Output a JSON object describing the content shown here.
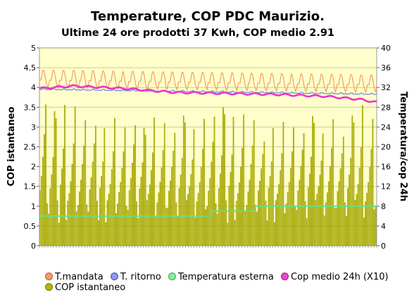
{
  "chart_data": {
    "type": "bar",
    "title": "Temperature, COP PDC Maurizio.",
    "subtitle": "Ultime 24 ore prodotti 37 Kwh, COP medio 2.91",
    "ylabel": "COP istantaneo",
    "y2label": "Temperatura/cop 24h",
    "ylim": [
      0,
      5
    ],
    "y2lim": [
      0,
      40
    ],
    "yticks": [
      "0",
      "0.5",
      "1",
      "1.5",
      "2",
      "2.5",
      "3",
      "3.5",
      "4",
      "4.5",
      "5"
    ],
    "y2ticks": [
      "0",
      "4",
      "8",
      "12",
      "16",
      "20",
      "24",
      "28",
      "32",
      "36",
      "40"
    ],
    "grid": true,
    "legend_position": "bottom",
    "series": [
      {
        "name": "T.mandata",
        "axis": "right",
        "kind": "line",
        "color": "#f0a060",
        "pattern": [
          33.5,
          33.5,
          33.5,
          34.5,
          35.5,
          35.5,
          35.0,
          34.0,
          33.0,
          32.5,
          32.0,
          32.5
        ],
        "cycles": 34,
        "base_start": 0.0,
        "base_end": -1.0
      },
      {
        "name": "T. ritorno",
        "axis": "right",
        "kind": "line",
        "color": "#6688dd",
        "pattern": [
          31.6,
          31.6,
          31.6,
          31.6,
          31.8,
          31.8,
          31.8,
          31.6,
          31.6,
          31.6,
          31.6,
          31.6
        ],
        "cycles": 34,
        "base_start": 0.0,
        "base_end": -1.0
      },
      {
        "name": "Temperatura esterna",
        "axis": "right",
        "kind": "step",
        "color": "#66dd88",
        "steps": [
          [
            0,
            6
          ],
          [
            0.51,
            7
          ],
          [
            0.64,
            8
          ],
          [
            1.0,
            8
          ]
        ]
      },
      {
        "name": "Cop medio 24h (X10)",
        "axis": "right",
        "kind": "line",
        "color": "#ee33cc",
        "points": [
          [
            0,
            31.8
          ],
          [
            0.1,
            32.3
          ],
          [
            0.25,
            31.8
          ],
          [
            0.4,
            31.0
          ],
          [
            0.55,
            30.8
          ],
          [
            0.7,
            30.6
          ],
          [
            0.85,
            30.2
          ],
          [
            0.95,
            29.6
          ],
          [
            1.0,
            29.0
          ]
        ]
      },
      {
        "name": "COP istantaneo",
        "axis": "left",
        "kind": "bar",
        "color": "#b5b500",
        "cycles": 34,
        "peaks": [
          3.7,
          3.4,
          3.6,
          3.6,
          3.3,
          3.2,
          3.0,
          3.3,
          3.1,
          3.2,
          3.0,
          3.3,
          3.2,
          3.0,
          3.3,
          3.0,
          3.3,
          3.4,
          3.5,
          3.3,
          3.4,
          3.3,
          2.8,
          3.0,
          3.2,
          3.1,
          3.0,
          3.3,
          2.9,
          3.3,
          2.9,
          3.3,
          3.6,
          3.3
        ],
        "base_level": 1.3
      }
    ]
  }
}
